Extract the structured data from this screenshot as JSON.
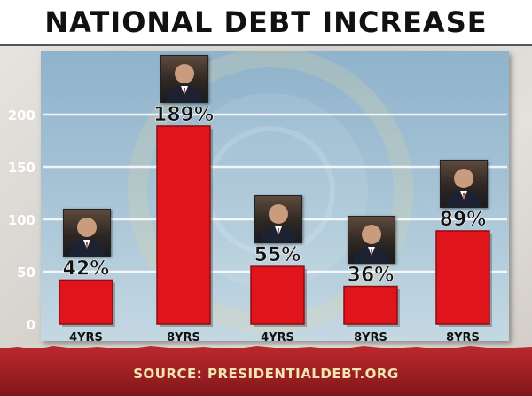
{
  "title": "NATIONAL DEBT INCREASE",
  "source": "SOURCE: PRESIDENTIALDEBT.ORG",
  "colors": {
    "bar": "#e0141b",
    "bar_dark": "#8e0c10",
    "panel": "#a7c4d6",
    "footer": "#9a1e22"
  },
  "chart_data": {
    "type": "bar",
    "title": "NATIONAL DEBT INCREASE",
    "categories": [
      "4YRS",
      "8YRS",
      "4YRS",
      "8YRS",
      "8YRS"
    ],
    "values": [
      42,
      189,
      55,
      36,
      89
    ],
    "data_labels": [
      "42%",
      "189%",
      "55%",
      "36%",
      "89%"
    ],
    "yticks": [
      0,
      50,
      100,
      150,
      200
    ],
    "ylim": [
      0,
      225
    ],
    "xlabel": "",
    "ylabel": "",
    "grid": true,
    "portraits": [
      "president-portrait",
      "president-portrait",
      "president-portrait",
      "president-portrait",
      "president-portrait"
    ]
  }
}
